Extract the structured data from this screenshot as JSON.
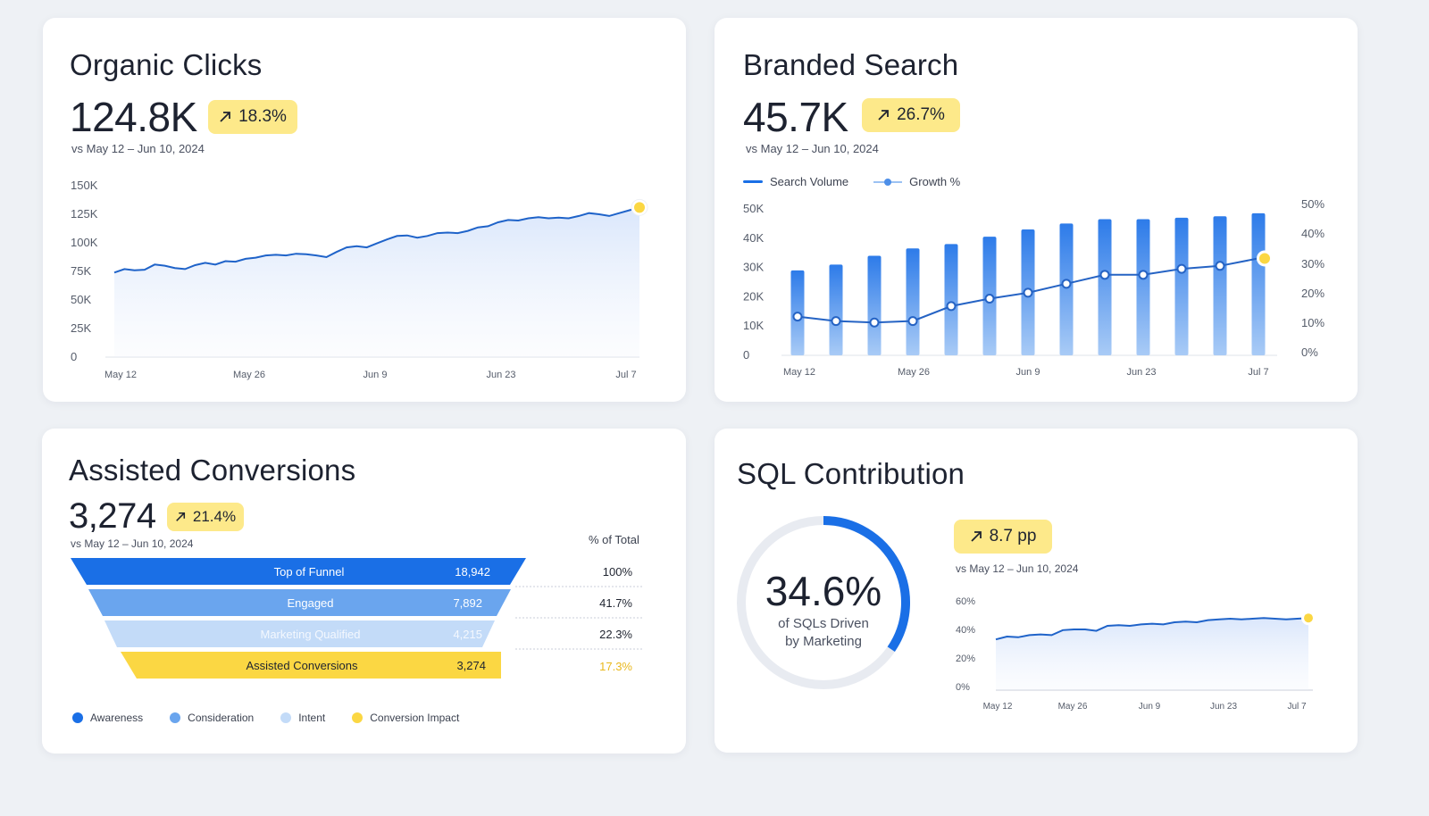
{
  "organic": {
    "title": "Organic Clicks",
    "value": "124.8K",
    "change": "18.3%",
    "comparison": "vs May 12 – Jun 10, 2024",
    "chart_data": {
      "type": "area",
      "y_ticks": [
        "150K",
        "125K",
        "100K",
        "75K",
        "50K",
        "25K",
        "0"
      ],
      "x_ticks": [
        "May 12",
        "May 26",
        "Jun 9",
        "Jun 23",
        "Jul 7"
      ],
      "ylim": [
        0,
        150000
      ],
      "values": [
        74000,
        77000,
        76000,
        76500,
        81000,
        80000,
        78000,
        77000,
        80500,
        82500,
        81000,
        84000,
        83500,
        86000,
        87000,
        89000,
        89500,
        89000,
        90500,
        90000,
        89000,
        87500,
        92000,
        96000,
        97000,
        96000,
        99500,
        103000,
        106000,
        106500,
        104500,
        106000,
        108500,
        109000,
        108500,
        110500,
        113500,
        114500,
        118000,
        120000,
        119500,
        121500,
        122500,
        121500,
        122000,
        121500,
        123500,
        126000,
        125000,
        123500,
        126000,
        128500,
        131000
      ]
    }
  },
  "branded": {
    "title": "Branded Search",
    "value": "45.7K",
    "change": "26.7%",
    "comparison": "vs May 12 – Jun 10, 2024",
    "legend": {
      "volume": "Search Volume",
      "growth": "Growth %"
    },
    "chart_data": {
      "type": "bar",
      "y_left_ticks": [
        "50K",
        "40K",
        "30K",
        "20K",
        "10K",
        "0"
      ],
      "y_right_ticks": [
        "50%",
        "40%",
        "30%",
        "20%",
        "10%",
        "0%"
      ],
      "x_ticks": [
        "May 12",
        "May 26",
        "Jun 9",
        "Jun 23",
        "Jul 7"
      ],
      "ylim_left": [
        0,
        50000
      ],
      "ylim_right": [
        0,
        50
      ],
      "series": [
        {
          "name": "Search Volume",
          "values": [
            29000,
            31000,
            34000,
            36500,
            38000,
            40500,
            43000,
            45000,
            46500,
            46500,
            47000,
            47500,
            48500
          ]
        },
        {
          "name": "Growth %",
          "values": [
            13,
            11.5,
            11,
            11.5,
            16.5,
            19,
            21,
            24,
            27,
            27,
            29,
            30,
            32.5
          ]
        }
      ]
    }
  },
  "assisted": {
    "title": "Assisted Conversions",
    "value": "3,274",
    "change": "21.4%",
    "comparison": "vs May 12 – Jun 10, 2024",
    "pct_header": "% of Total",
    "chart_data": {
      "type": "funnel",
      "stages": [
        {
          "label": "Top of Funnel",
          "value": "18,942",
          "pct": "100%",
          "color": "#1a6fe6"
        },
        {
          "label": "Engaged",
          "value": "7,892",
          "pct": "41.7%",
          "color": "#6aa5ee"
        },
        {
          "label": "Marketing Qualified",
          "value": "4,215",
          "pct": "22.3%",
          "color": "#c3dbf8"
        },
        {
          "label": "Assisted Conversions",
          "value": "3,274",
          "pct": "17.3%",
          "color": "#fbd743"
        }
      ]
    },
    "legend": [
      {
        "label": "Awareness",
        "color": "#1a6fe6"
      },
      {
        "label": "Consideration",
        "color": "#6aa5ee"
      },
      {
        "label": "Intent",
        "color": "#c3dbf8"
      },
      {
        "label": "Conversion Impact",
        "color": "#fbd743"
      }
    ]
  },
  "sql": {
    "title": "SQL Contribution",
    "value": "34.6%",
    "caption_line1": "of SQLs Driven",
    "caption_line2": "by Marketing",
    "change": "8.7 pp",
    "comparison": "vs May 12 – Jun 10, 2024",
    "chart_data": {
      "type": "area",
      "gauge_fraction": 0.346,
      "y_ticks": [
        "60%",
        "40%",
        "20%",
        "0%"
      ],
      "x_ticks": [
        "May 12",
        "May 26",
        "Jun 9",
        "Jun 23",
        "Jul 7"
      ],
      "ylim": [
        0,
        60
      ],
      "values": [
        33,
        35,
        34.5,
        36,
        36.5,
        36,
        39.5,
        40,
        40,
        39,
        42.5,
        43,
        42.5,
        43.5,
        44,
        43.5,
        45,
        45.5,
        45,
        46.5,
        47,
        47.5,
        47,
        47.5,
        48,
        47.5,
        47,
        47.5,
        48
      ]
    }
  }
}
